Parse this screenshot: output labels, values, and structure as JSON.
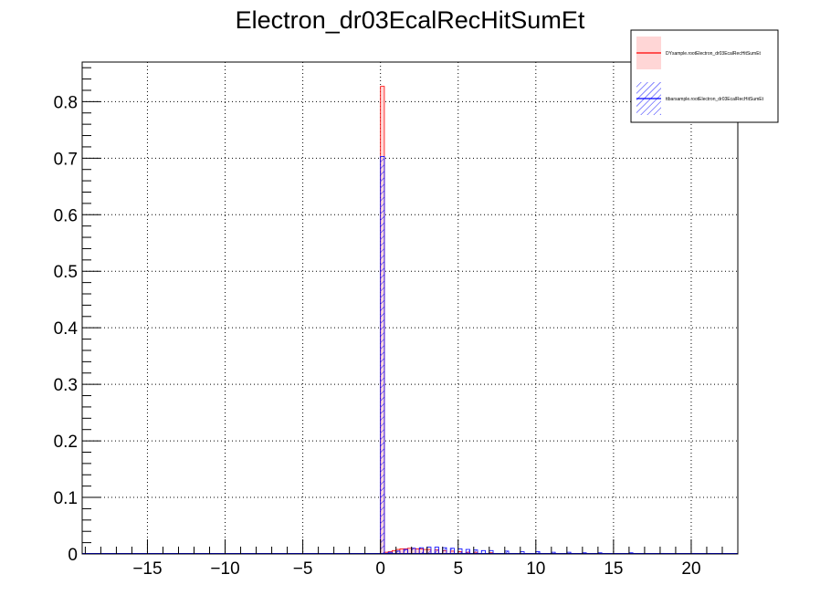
{
  "chart_data": {
    "type": "bar",
    "title": "Electron_dr03EcalRecHitSumEt",
    "xlabel": "",
    "ylabel": "",
    "xlim": [
      -19.2,
      23
    ],
    "ylim": [
      0,
      0.87
    ],
    "grid": true,
    "bin_width": 0.25,
    "x_ticks": [
      -15,
      -10,
      -5,
      0,
      5,
      10,
      15,
      20
    ],
    "x_tick_labels": [
      "−15",
      "−10",
      "−5",
      "0",
      "5",
      "10",
      "15",
      "20"
    ],
    "y_ticks": [
      0,
      0.1,
      0.2,
      0.3,
      0.4,
      0.5,
      0.6,
      0.7,
      0.8
    ],
    "y_tick_labels": [
      "0",
      "0.1",
      "0.2",
      "0.3",
      "0.4",
      "0.5",
      "0.6",
      "0.7",
      "0.8"
    ],
    "legend_position": "top-right",
    "series": [
      {
        "name": "DYsample.rootElectron_dr03EcalRecHitSumEt",
        "color": "#ff0000",
        "fill": "#ffd6d6",
        "x": [
          0,
          0.25,
          0.5,
          0.75,
          1.0,
          1.25,
          1.5,
          1.75,
          2.0,
          2.25,
          2.5,
          2.75,
          3.0,
          3.5,
          4.0,
          4.5,
          5.0,
          5.5,
          6.0,
          7.0,
          8.0
        ],
        "values": [
          0.827,
          0.003,
          0.004,
          0.006,
          0.008,
          0.009,
          0.009,
          0.01,
          0.01,
          0.009,
          0.009,
          0.008,
          0.008,
          0.007,
          0.006,
          0.005,
          0.004,
          0.003,
          0.003,
          0.002,
          0.001
        ]
      },
      {
        "name": "ttbarsample.rootElectron_dr03EcalRecHitSumEt",
        "color": "#0000ff",
        "fill": "hatched",
        "x": [
          0,
          0.5,
          1.0,
          1.5,
          2.0,
          2.5,
          3.0,
          3.5,
          4.0,
          4.5,
          5.0,
          5.5,
          6.0,
          6.5,
          7.0,
          8.0,
          9.0,
          10.0,
          11.0,
          12.0,
          13.0,
          14.0,
          16.0,
          18.0,
          20.0,
          21.0
        ],
        "values": [
          0.703,
          0.003,
          0.005,
          0.008,
          0.01,
          0.011,
          0.012,
          0.012,
          0.011,
          0.01,
          0.009,
          0.008,
          0.007,
          0.006,
          0.006,
          0.005,
          0.004,
          0.004,
          0.003,
          0.003,
          0.002,
          0.002,
          0.002,
          0.001,
          0.001,
          0.001
        ]
      }
    ]
  }
}
